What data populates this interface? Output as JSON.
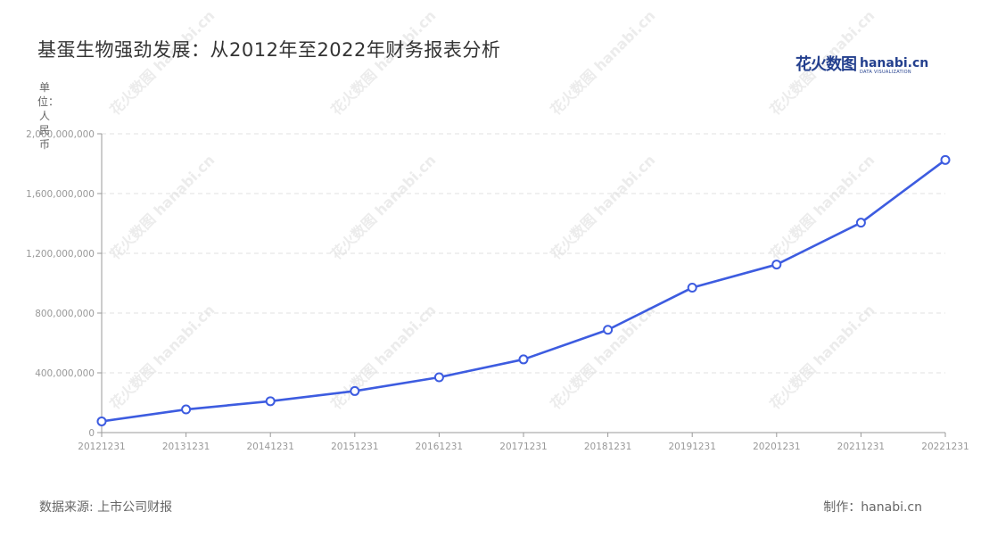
{
  "title": "基蛋生物强劲发展：从2012年至2022年财务报表分析",
  "unit_label": "单位：人民币",
  "source": "数据来源: 上市公司财报",
  "credit": "制作：hanabi.cn",
  "brand": {
    "cn": "花火数图",
    "en": "hanabi.cn",
    "sub": "DATA VISUALIZATION"
  },
  "watermark_text": "花火数图 hanabi.cn",
  "colors": {
    "line": "#3d5ce0",
    "axis": "#999999",
    "grid": "#e0e0e0",
    "text": "#333333"
  },
  "chart_data": {
    "type": "line",
    "title": "基蛋生物强劲发展：从2012年至2022年财务报表分析",
    "ylabel": "单位：人民币",
    "xlabel": "",
    "categories": [
      "20121231",
      "20131231",
      "20141231",
      "20151231",
      "20161231",
      "20171231",
      "20181231",
      "20191231",
      "20201231",
      "20211231",
      "20221231"
    ],
    "series": [
      {
        "values": [
          75000000,
          155000000,
          210000000,
          278000000,
          370000000,
          490000000,
          688000000,
          970000000,
          1125000000,
          1405000000,
          1825000000
        ]
      }
    ],
    "ylim": [
      0,
      2000000000
    ],
    "yticks": [
      0,
      400000000,
      800000000,
      1200000000,
      1600000000,
      2000000000
    ],
    "ytick_labels": [
      "0",
      "400,000,000",
      "800,000,000",
      "1,200,000,000",
      "1,600,000,000",
      "2,000,000,000"
    ],
    "grid": true,
    "legend": "none"
  }
}
